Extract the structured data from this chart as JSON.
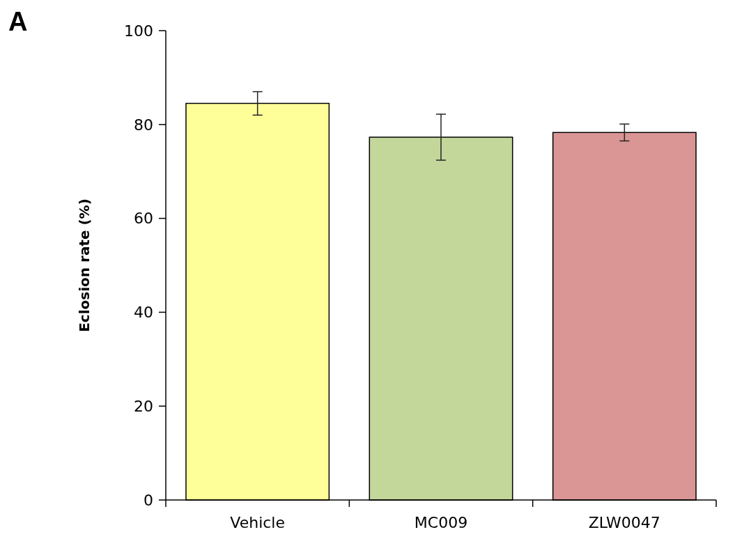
{
  "chart_data": {
    "type": "bar",
    "ylabel": "Eclosion rate (%)",
    "annotations": [
      "A"
    ],
    "categories": [
      "Vehicle",
      "MC009",
      "ZLW0047"
    ],
    "values": [
      84.5,
      77.3,
      78.3
    ],
    "errors": [
      2.5,
      4.9,
      1.8
    ],
    "colors": [
      "#ffff99",
      "#c4d79b",
      "#da9694"
    ],
    "ylim": [
      0,
      100
    ],
    "yticks": [
      0,
      20,
      40,
      60,
      80,
      100
    ],
    "grid": false
  }
}
